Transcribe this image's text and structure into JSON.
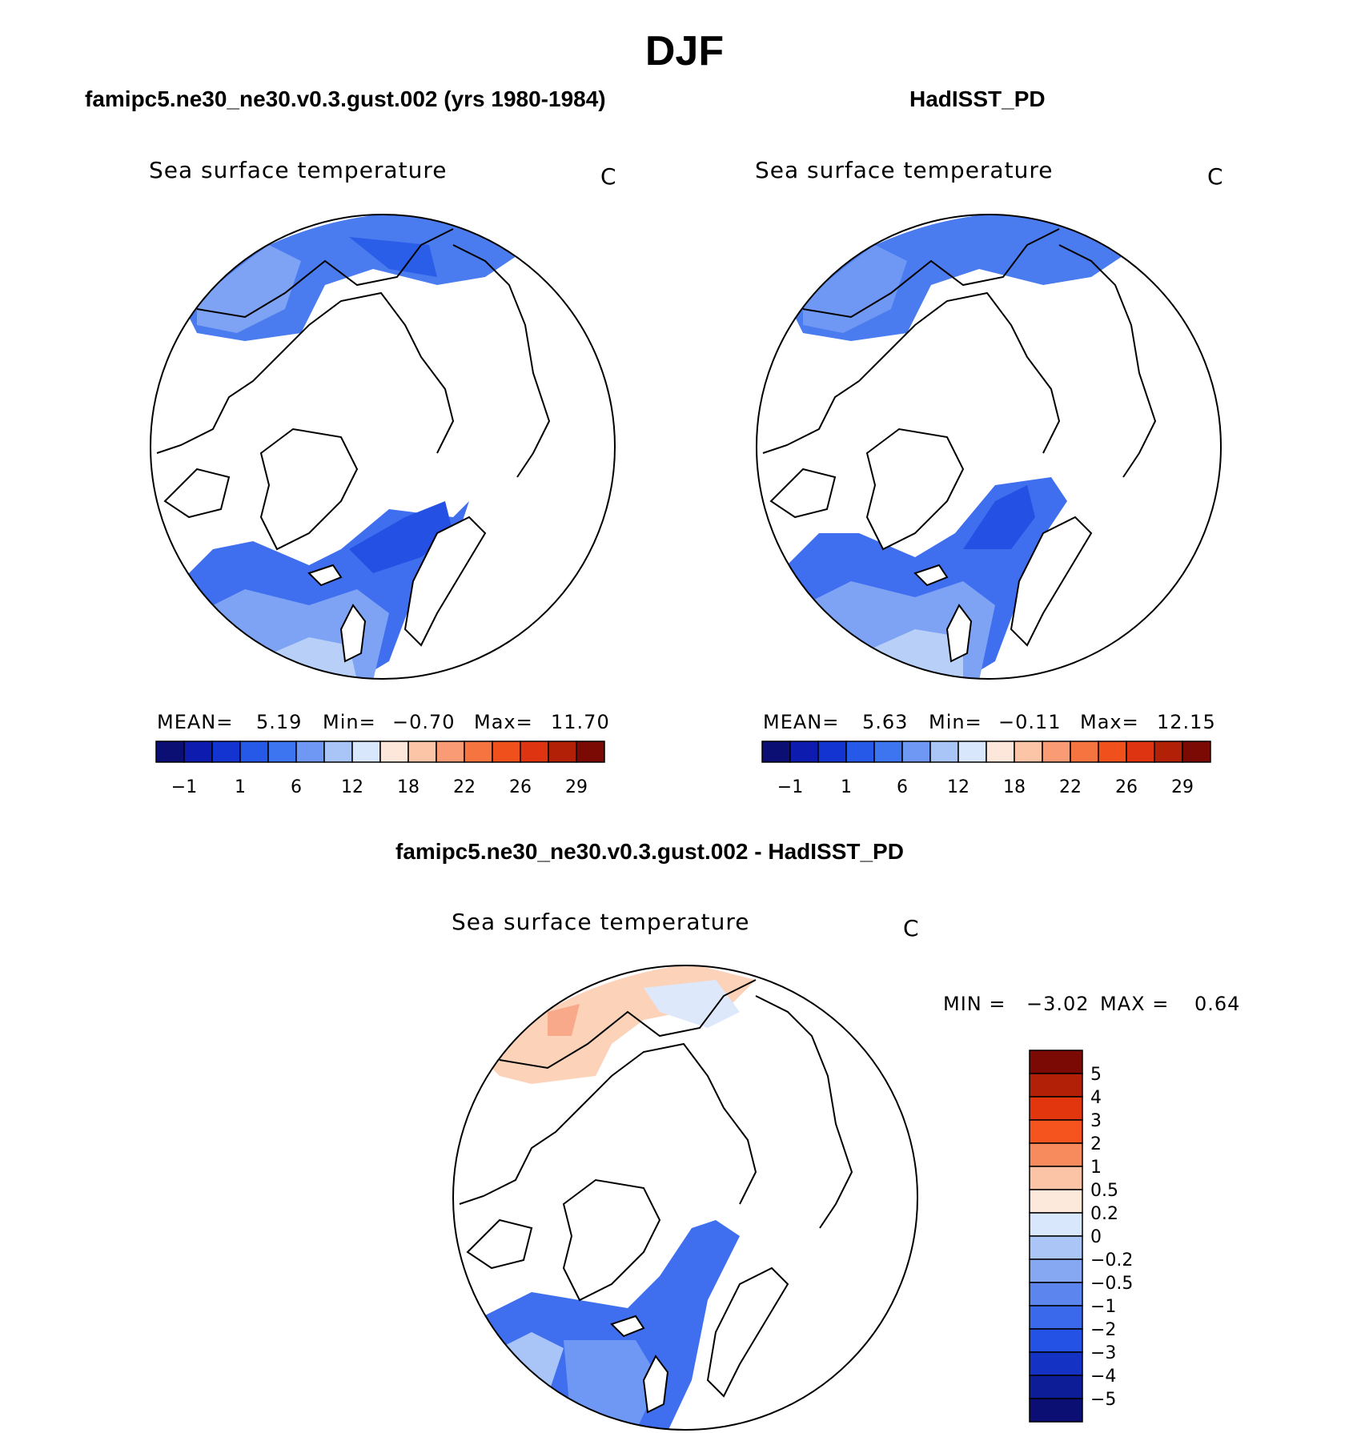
{
  "title": "DJF",
  "panels": [
    {
      "header": "famipc5.ne30_ne30.v0.3.gust.002 (yrs 1980-1984)",
      "variable": "Sea surface temperature",
      "units": "C",
      "stats": {
        "mean_label": "MEAN=",
        "mean": "5.19",
        "min_label": "Min=",
        "min": "−0.70",
        "max_label": "Max=",
        "max": "11.70"
      }
    },
    {
      "header": "HadISST_PD",
      "variable": "Sea surface temperature",
      "units": "C",
      "stats": {
        "mean_label": "MEAN=",
        "mean": "5.63",
        "min_label": "Min=",
        "min": "−0.11",
        "max_label": "Max=",
        "max": "12.15"
      }
    }
  ],
  "difference": {
    "header": "famipc5.ne30_ne30.v0.3.gust.002 - HadISST_PD",
    "variable": "Sea surface temperature",
    "units": "C",
    "stats": {
      "min_label": "MIN =",
      "min": "−3.02",
      "max_label": "MAX =",
      "max": "0.64"
    }
  },
  "colorbars": {
    "absolute": {
      "colors": [
        "#0b0e73",
        "#0d1cae",
        "#1434d2",
        "#2659e8",
        "#3d74ef",
        "#6e98f3",
        "#a9c4f6",
        "#d8e7fb",
        "#fde7da",
        "#fcc5a7",
        "#f99b74",
        "#f6743f",
        "#f0501c",
        "#de3411",
        "#b32008",
        "#7a0a03"
      ],
      "labels": [
        "−1",
        "1",
        "6",
        "12",
        "18",
        "22",
        "26",
        "29"
      ]
    },
    "difference": {
      "colors": [
        "#7a0a03",
        "#b32008",
        "#e2360f",
        "#f6541f",
        "#f88b5e",
        "#fcc4a7",
        "#fde9dc",
        "#d8e7fb",
        "#abc6f6",
        "#86a8f3",
        "#5d85ee",
        "#3b69eb",
        "#2352e4",
        "#1432c4",
        "#0d1d98",
        "#0b0e73"
      ],
      "labels": [
        "5",
        "4",
        "3",
        "2",
        "1",
        "0.5",
        "0.2",
        "0",
        "−0.2",
        "−0.5",
        "−1",
        "−2",
        "−3",
        "−4",
        "−5"
      ]
    }
  }
}
